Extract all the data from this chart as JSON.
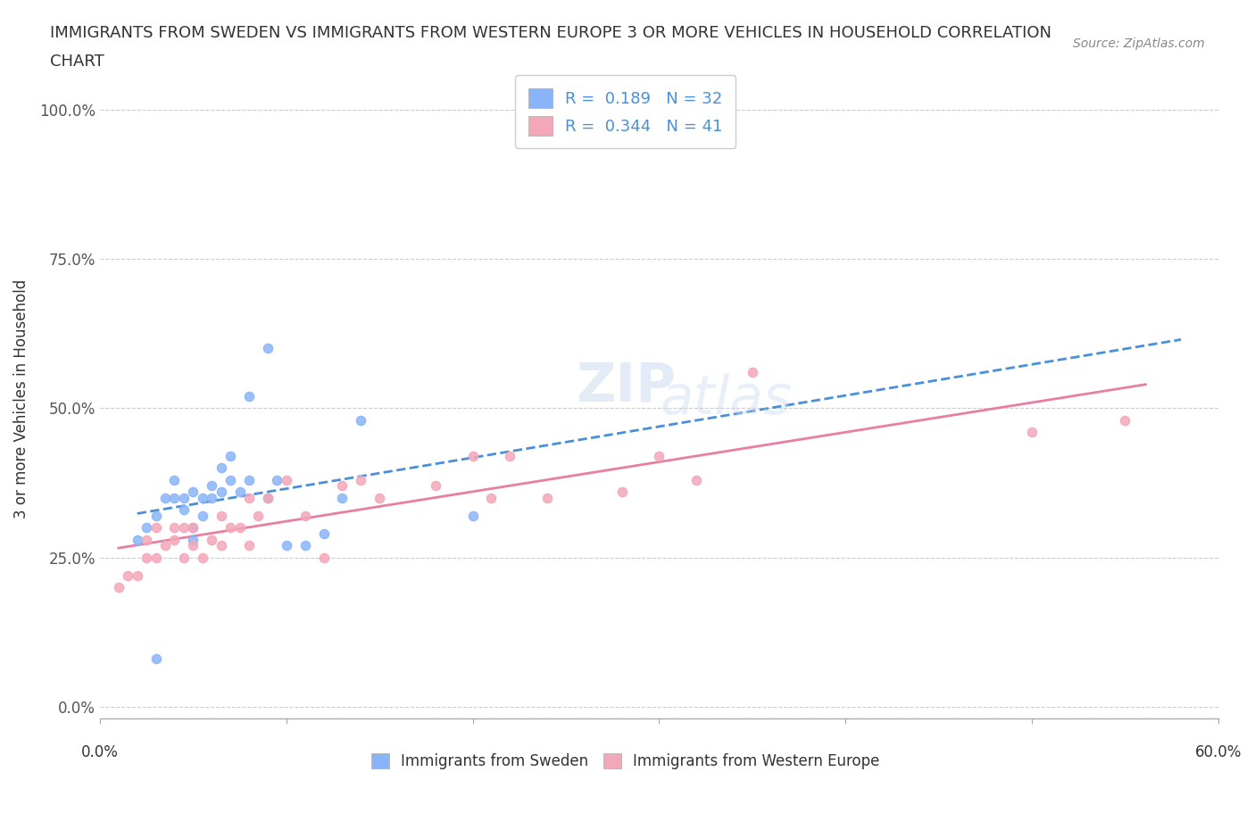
{
  "title_line1": "IMMIGRANTS FROM SWEDEN VS IMMIGRANTS FROM WESTERN EUROPE 3 OR MORE VEHICLES IN HOUSEHOLD CORRELATION",
  "title_line2": "CHART",
  "source": "Source: ZipAtlas.com",
  "ylabel": "3 or more Vehicles in Household",
  "yticks": [
    "0.0%",
    "25.0%",
    "50.0%",
    "75.0%",
    "100.0%"
  ],
  "ytick_vals": [
    0.0,
    0.25,
    0.5,
    0.75,
    1.0
  ],
  "xrange": [
    0.0,
    0.6
  ],
  "yrange": [
    -0.02,
    1.05
  ],
  "r_sweden": 0.189,
  "n_sweden": 32,
  "r_western": 0.344,
  "n_western": 41,
  "color_sweden": "#8ab4f8",
  "color_western": "#f4a7b9",
  "color_line_sweden": "#4a90d9",
  "color_line_western": "#e87fa0",
  "sweden_x": [
    0.02,
    0.025,
    0.03,
    0.035,
    0.04,
    0.04,
    0.045,
    0.045,
    0.05,
    0.05,
    0.05,
    0.055,
    0.055,
    0.06,
    0.06,
    0.065,
    0.065,
    0.07,
    0.07,
    0.075,
    0.08,
    0.08,
    0.09,
    0.09,
    0.095,
    0.1,
    0.11,
    0.12,
    0.13,
    0.14,
    0.2,
    0.03
  ],
  "sweden_y": [
    0.28,
    0.3,
    0.32,
    0.35,
    0.35,
    0.38,
    0.33,
    0.35,
    0.28,
    0.3,
    0.36,
    0.32,
    0.35,
    0.35,
    0.37,
    0.36,
    0.4,
    0.38,
    0.42,
    0.36,
    0.52,
    0.38,
    0.6,
    0.35,
    0.38,
    0.27,
    0.27,
    0.29,
    0.35,
    0.48,
    0.32,
    0.08
  ],
  "western_x": [
    0.01,
    0.015,
    0.02,
    0.025,
    0.025,
    0.03,
    0.03,
    0.035,
    0.04,
    0.04,
    0.045,
    0.045,
    0.05,
    0.05,
    0.055,
    0.06,
    0.065,
    0.065,
    0.07,
    0.075,
    0.08,
    0.08,
    0.085,
    0.09,
    0.1,
    0.11,
    0.12,
    0.13,
    0.14,
    0.15,
    0.18,
    0.2,
    0.21,
    0.22,
    0.24,
    0.28,
    0.3,
    0.32,
    0.35,
    0.5,
    0.55
  ],
  "western_y": [
    0.2,
    0.22,
    0.22,
    0.25,
    0.28,
    0.25,
    0.3,
    0.27,
    0.28,
    0.3,
    0.25,
    0.3,
    0.27,
    0.3,
    0.25,
    0.28,
    0.27,
    0.32,
    0.3,
    0.3,
    0.27,
    0.35,
    0.32,
    0.35,
    0.38,
    0.32,
    0.25,
    0.37,
    0.38,
    0.35,
    0.37,
    0.42,
    0.35,
    0.42,
    0.35,
    0.36,
    0.42,
    0.38,
    0.56,
    0.46,
    0.48
  ]
}
